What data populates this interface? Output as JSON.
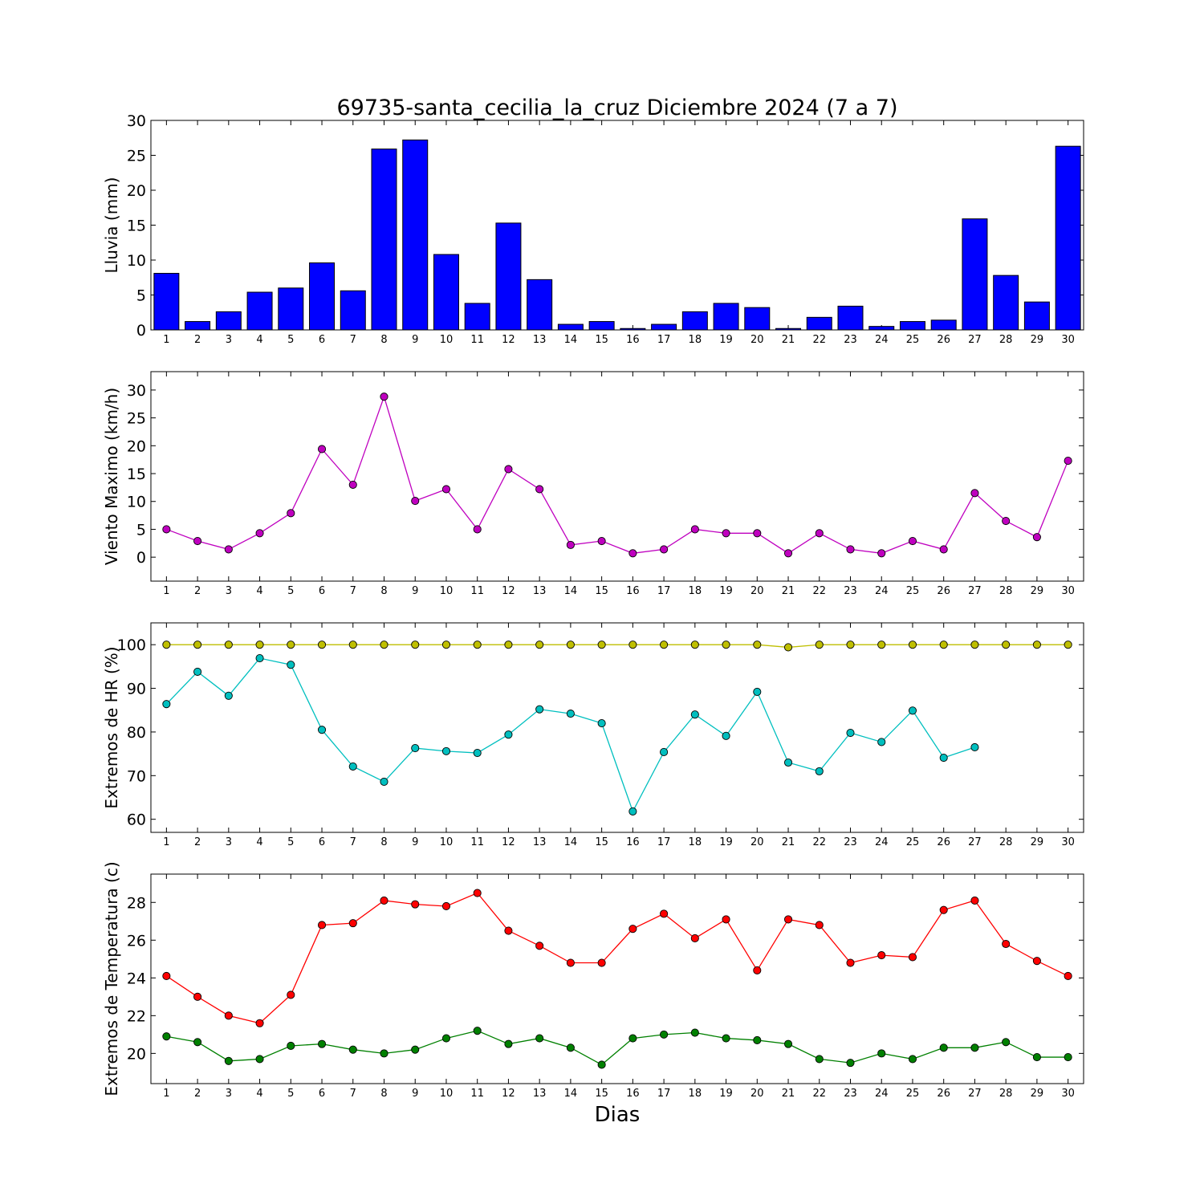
{
  "figure": {
    "title": "69735-santa_cecilia_la_cruz Diciembre 2024  (7 a 7)",
    "xlabel": "Dias"
  },
  "chart_data": [
    {
      "type": "bar",
      "ylabel": "Lluvia (mm)",
      "ylim": [
        0,
        30
      ],
      "yticks": [
        0,
        5,
        10,
        15,
        20,
        25,
        30
      ],
      "categories": [
        1,
        2,
        3,
        4,
        5,
        6,
        7,
        8,
        9,
        10,
        11,
        12,
        13,
        14,
        15,
        16,
        17,
        18,
        19,
        20,
        21,
        22,
        23,
        24,
        25,
        26,
        27,
        28,
        29,
        30
      ],
      "values": [
        8.1,
        1.2,
        2.6,
        5.4,
        6.0,
        9.6,
        5.6,
        25.9,
        27.2,
        10.8,
        3.8,
        15.3,
        7.2,
        0.8,
        1.2,
        0.2,
        0.8,
        2.6,
        3.8,
        3.2,
        0.2,
        1.8,
        3.4,
        0.5,
        1.2,
        1.4,
        15.9,
        7.8,
        4.0,
        26.3
      ],
      "color": "#0000ff",
      "grid": false
    },
    {
      "type": "line",
      "ylabel": "Viento Maximo (km/h)",
      "ylim": [
        -4.3,
        33.3
      ],
      "yticks": [
        0,
        5,
        10,
        15,
        20,
        25,
        30
      ],
      "x": [
        1,
        2,
        3,
        4,
        5,
        6,
        7,
        8,
        9,
        10,
        11,
        12,
        13,
        14,
        15,
        16,
        17,
        18,
        19,
        20,
        21,
        22,
        23,
        24,
        25,
        26,
        27,
        28,
        29,
        30
      ],
      "series": [
        {
          "values": [
            5.0,
            2.9,
            1.4,
            4.3,
            7.9,
            19.4,
            13.0,
            28.8,
            10.1,
            12.2,
            5.0,
            15.8,
            12.2,
            2.2,
            2.9,
            0.7,
            1.4,
            5.0,
            4.3,
            4.3,
            0.7,
            4.3,
            1.4,
            0.7,
            2.9,
            1.4,
            11.5,
            6.5,
            3.6,
            17.3
          ],
          "color": "#bf00bf"
        }
      ],
      "grid": false
    },
    {
      "type": "line",
      "ylabel": "Extremos de HR (%)",
      "ylim": [
        57,
        105
      ],
      "yticks": [
        60,
        70,
        80,
        90,
        100
      ],
      "x": [
        1,
        2,
        3,
        4,
        5,
        6,
        7,
        8,
        9,
        10,
        11,
        12,
        13,
        14,
        15,
        16,
        17,
        18,
        19,
        20,
        21,
        22,
        23,
        24,
        25,
        26,
        27,
        28,
        29,
        30
      ],
      "series": [
        {
          "values": [
            100,
            100,
            100,
            100,
            100,
            100,
            100,
            100,
            100,
            100,
            100,
            100,
            100,
            100,
            100,
            100,
            100,
            100,
            100,
            100,
            99.4,
            100,
            100,
            100,
            100,
            100,
            100,
            100,
            100,
            100
          ],
          "color": "#bfbf00"
        },
        {
          "values": [
            86.4,
            93.8,
            88.3,
            96.9,
            95.4,
            80.5,
            72.1,
            68.6,
            76.3,
            75.6,
            75.2,
            79.4,
            85.2,
            84.2,
            82.0,
            61.8,
            75.4,
            84.0,
            79.1,
            89.2,
            73.0,
            71.0,
            79.8,
            77.7,
            84.9,
            74.1,
            76.5,
            null,
            null,
            null
          ],
          "color": "#00bfbf"
        }
      ],
      "grid": false
    },
    {
      "type": "line",
      "ylabel": "Extremos de Temperatura (c)",
      "ylim": [
        18.4,
        29.5
      ],
      "yticks": [
        20,
        22,
        24,
        26,
        28
      ],
      "x": [
        1,
        2,
        3,
        4,
        5,
        6,
        7,
        8,
        9,
        10,
        11,
        12,
        13,
        14,
        15,
        16,
        17,
        18,
        19,
        20,
        21,
        22,
        23,
        24,
        25,
        26,
        27,
        28,
        29,
        30
      ],
      "series": [
        {
          "values": [
            24.1,
            23.0,
            22.0,
            21.6,
            23.1,
            26.8,
            26.9,
            28.1,
            27.9,
            27.8,
            28.5,
            26.5,
            25.7,
            24.8,
            24.8,
            26.6,
            27.4,
            26.1,
            27.1,
            24.4,
            27.1,
            26.8,
            24.8,
            25.2,
            25.1,
            27.6,
            28.1,
            25.8,
            24.9,
            24.1
          ],
          "color": "#ff0000"
        },
        {
          "values": [
            20.9,
            20.6,
            19.6,
            19.7,
            20.4,
            20.5,
            20.2,
            20.0,
            20.2,
            20.8,
            21.2,
            20.5,
            20.8,
            20.3,
            19.4,
            20.8,
            21.0,
            21.1,
            20.8,
            20.7,
            20.5,
            19.7,
            19.5,
            20.0,
            19.7,
            20.3,
            20.3,
            20.6,
            19.8,
            19.8
          ],
          "color": "#008000"
        }
      ],
      "grid": false
    }
  ]
}
